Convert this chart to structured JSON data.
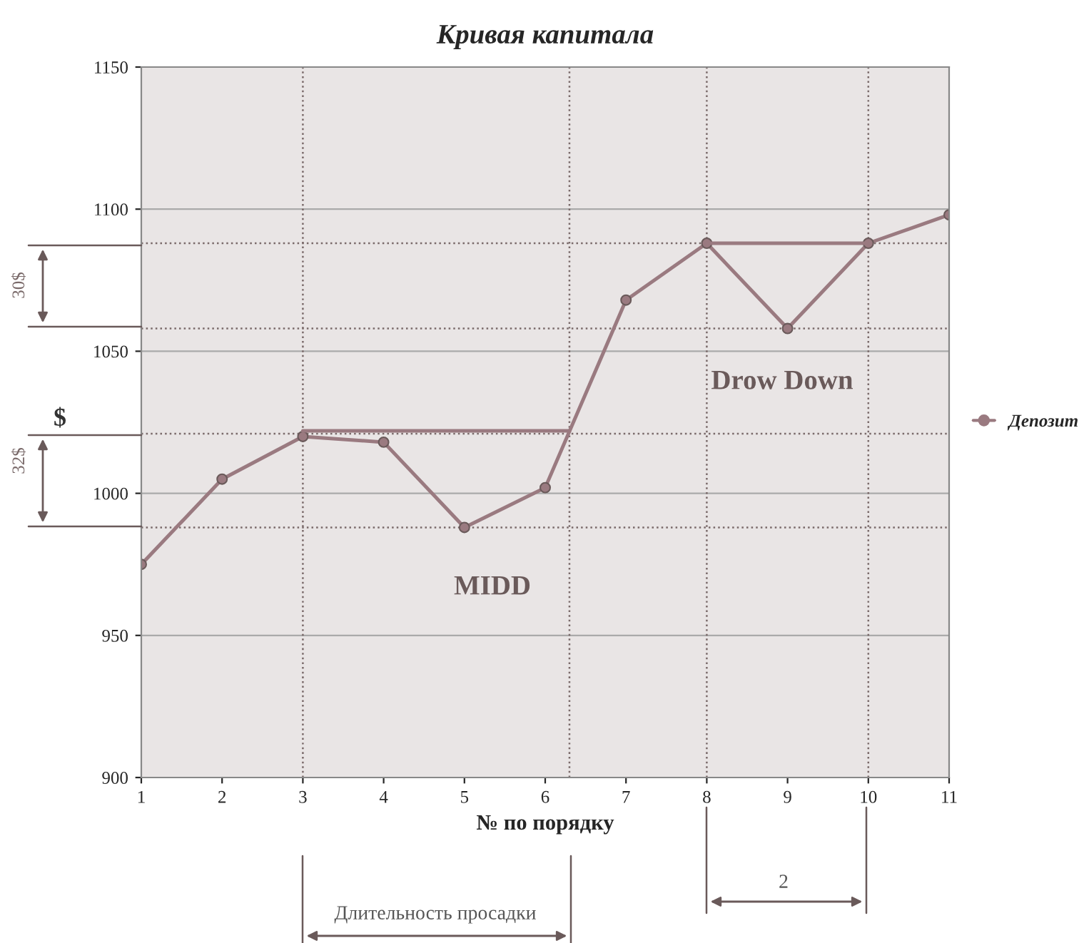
{
  "chart_data": {
    "type": "line",
    "title": "Кривая капитала",
    "xlabel": "№ по порядку",
    "x": [
      1,
      2,
      3,
      4,
      5,
      6,
      7,
      8,
      9,
      10,
      11
    ],
    "series": [
      {
        "name": "Депозит",
        "color": "#9a7a80",
        "values": [
          975,
          1005,
          1020,
          1018,
          988,
          1002,
          1068,
          1088,
          1058,
          1088,
          1098
        ]
      },
      {
        "type": "line",
        "color": "#9a7a80",
        "x": [
          3,
          6.3
        ],
        "values": [
          1022,
          1022
        ],
        "marker": "none"
      },
      {
        "type": "line",
        "color": "#9a7a80",
        "x": [
          8,
          10
        ],
        "values": [
          1088,
          1088
        ],
        "marker": "none"
      }
    ],
    "xlim": [
      1,
      11
    ],
    "xticks": [
      1,
      2,
      3,
      4,
      5,
      6,
      7,
      8,
      9,
      10,
      11
    ],
    "ylim": [
      900,
      1150
    ],
    "yticks": [
      900,
      950,
      1000,
      1050,
      1100,
      1150
    ],
    "grid": "y",
    "legend": "right",
    "marker": "circle",
    "line_style": "solid",
    "ref_lines": [
      {
        "axis": "y",
        "value": 1088,
        "color": "#7a6a6a",
        "line_style": "dotted"
      },
      {
        "axis": "y",
        "value": 1058,
        "color": "#7a6a6a",
        "line_style": "dotted"
      },
      {
        "axis": "y",
        "value": 1021,
        "color": "#7a6a6a",
        "line_style": "dotted"
      },
      {
        "axis": "y",
        "value": 988,
        "color": "#7a6a6a",
        "line_style": "dotted"
      },
      {
        "axis": "x",
        "value": 3,
        "color": "#7a6a6a",
        "line_style": "dotted"
      },
      {
        "axis": "x",
        "value": 6.3,
        "color": "#7a6a6a",
        "line_style": "dotted"
      },
      {
        "axis": "x",
        "value": 8,
        "color": "#7a6a6a",
        "line_style": "dotted"
      },
      {
        "axis": "x",
        "value": 10,
        "color": "#7a6a6a",
        "line_style": "dotted"
      }
    ],
    "annotations": [
      "MIDD",
      "Drow Down",
      "30$",
      "32$",
      "$",
      "Длительность просадки",
      "2"
    ]
  }
}
